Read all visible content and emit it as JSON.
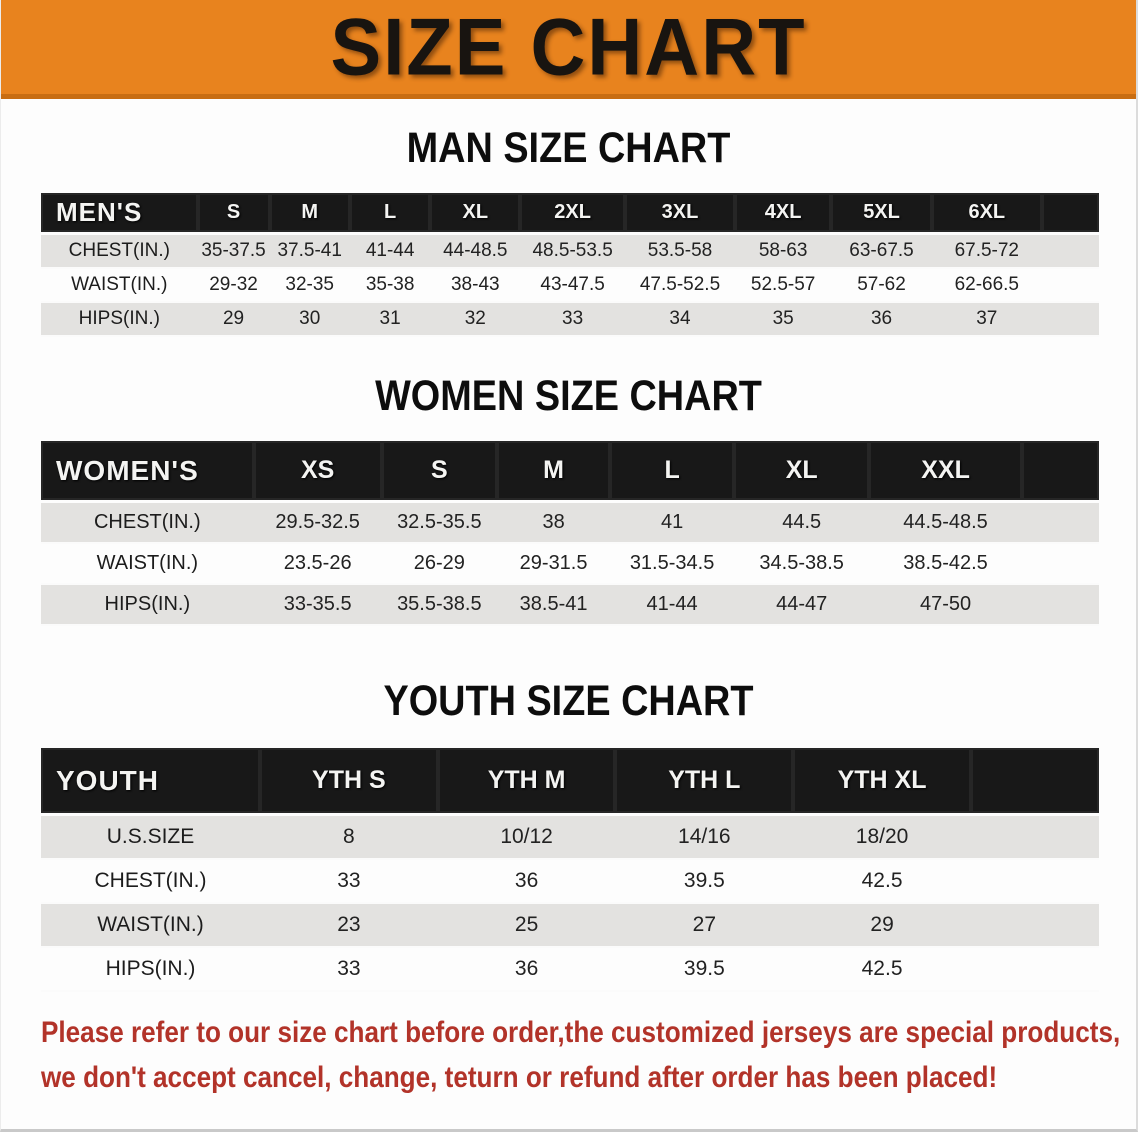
{
  "banner": {
    "title": "SIZE CHART",
    "bg_color": "#E8831E"
  },
  "sections": [
    {
      "id": "men",
      "heading": "MAN SIZE CHART",
      "table": {
        "title": "MEN'S",
        "columns": [
          "S",
          "M",
          "L",
          "XL",
          "2XL",
          "3XL",
          "4XL",
          "5XL",
          "6XL"
        ],
        "rows": [
          {
            "label": "CHEST(IN.)",
            "values": [
              "35-37.5",
              "37.5-41",
              "41-44",
              "44-48.5",
              "48.5-53.5",
              "53.5-58",
              "58-63",
              "63-67.5",
              "67.5-72"
            ]
          },
          {
            "label": "WAIST(IN.)",
            "values": [
              "29-32",
              "32-35",
              "35-38",
              "38-43",
              "43-47.5",
              "47.5-52.5",
              "52.5-57",
              "57-62",
              "62-66.5"
            ]
          },
          {
            "label": "HIPS(IN.)",
            "values": [
              "29",
              "30",
              "31",
              "32",
              "33",
              "34",
              "35",
              "36",
              "37"
            ]
          }
        ]
      }
    },
    {
      "id": "women",
      "heading": "WOMEN SIZE CHART",
      "table": {
        "title": "WOMEN'S",
        "columns": [
          "XS",
          "S",
          "M",
          "L",
          "XL",
          "XXL"
        ],
        "rows": [
          {
            "label": "CHEST(IN.)",
            "values": [
              "29.5-32.5",
              "32.5-35.5",
              "38",
              "41",
              "44.5",
              "44.5-48.5"
            ]
          },
          {
            "label": "WAIST(IN.)",
            "values": [
              "23.5-26",
              "26-29",
              "29-31.5",
              "31.5-34.5",
              "34.5-38.5",
              "38.5-42.5"
            ]
          },
          {
            "label": "HIPS(IN.)",
            "values": [
              "33-35.5",
              "35.5-38.5",
              "38.5-41",
              "41-44",
              "44-47",
              "47-50"
            ]
          }
        ]
      }
    },
    {
      "id": "youth",
      "heading": "YOUTH SIZE CHART",
      "table": {
        "title": "YOUTH",
        "columns": [
          "YTH S",
          "YTH M",
          "YTH L",
          "YTH XL"
        ],
        "rows": [
          {
            "label": "U.S.SIZE",
            "values": [
              "8",
              "10/12",
              "14/16",
              "18/20"
            ]
          },
          {
            "label": "CHEST(IN.)",
            "values": [
              "33",
              "36",
              "39.5",
              "42.5"
            ]
          },
          {
            "label": "WAIST(IN.)",
            "values": [
              "23",
              "25",
              "27",
              "29"
            ]
          },
          {
            "label": "HIPS(IN.)",
            "values": [
              "33",
              "36",
              "39.5",
              "42.5"
            ]
          }
        ]
      }
    }
  ],
  "disclaimer": {
    "line1": "Please refer to our size chart before order,the customized jerseys are special products,",
    "line2": "we don't accept cancel, change, teturn or refund after order has been placed!",
    "color": "#B23329"
  }
}
